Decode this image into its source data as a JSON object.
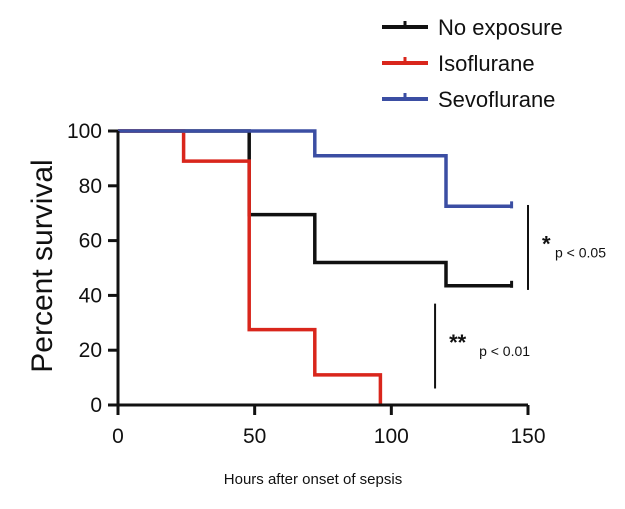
{
  "chart_data": {
    "type": "line",
    "subtype": "kaplan-meier step",
    "xlabel": "Hours after onset of sepsis",
    "ylabel": "Percent survival",
    "xlim": [
      0,
      150
    ],
    "ylim": [
      0,
      100
    ],
    "x_ticks": [
      0,
      50,
      100,
      150
    ],
    "y_ticks": [
      0,
      20,
      40,
      60,
      80,
      100
    ],
    "grid": false,
    "legend_position": "top-right",
    "series": [
      {
        "name": "No exposure",
        "color": "#111111",
        "points": [
          [
            0,
            100
          ],
          [
            48,
            100
          ],
          [
            48,
            69.5
          ],
          [
            72,
            69.5
          ],
          [
            72,
            52
          ],
          [
            120,
            52
          ],
          [
            120,
            43.5
          ],
          [
            144,
            43.5
          ]
        ],
        "censor": [
          144,
          43.5
        ]
      },
      {
        "name": "Isoflurane",
        "color": "#d9261c",
        "points": [
          [
            0,
            100
          ],
          [
            24,
            100
          ],
          [
            24,
            89
          ],
          [
            48,
            89
          ],
          [
            48,
            27.5
          ],
          [
            72,
            27.5
          ],
          [
            72,
            11
          ],
          [
            96,
            11
          ],
          [
            96,
            0
          ]
        ],
        "censor": null
      },
      {
        "name": "Sevoflurane",
        "color": "#3b4ea3",
        "points": [
          [
            0,
            100
          ],
          [
            72,
            100
          ],
          [
            72,
            91
          ],
          [
            120,
            91
          ],
          [
            120,
            72.5
          ],
          [
            144,
            72.5
          ]
        ],
        "censor": [
          144,
          72.5
        ]
      }
    ],
    "annotations": [
      {
        "stars": "*",
        "text": "p < 0.05",
        "bar_x": 150,
        "bar_y": [
          42,
          73
        ]
      },
      {
        "stars": "**",
        "text": "p < 0.01",
        "bar_x": 116,
        "bar_y": [
          6,
          37
        ]
      }
    ]
  }
}
